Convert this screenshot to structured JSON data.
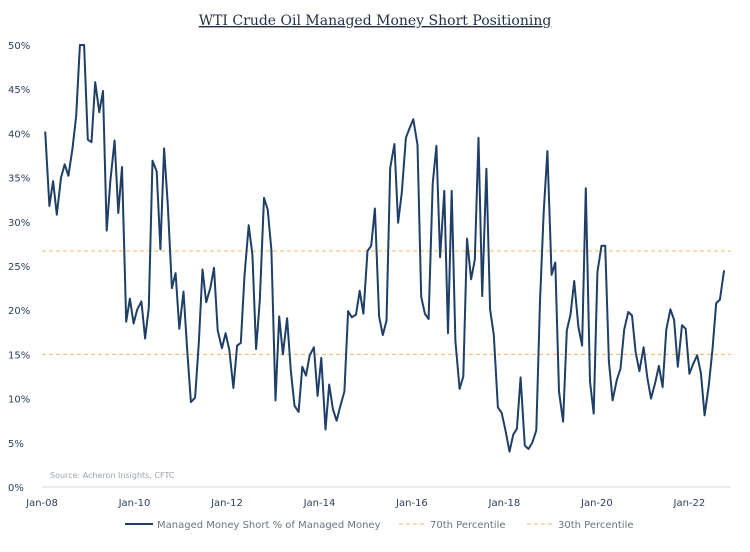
{
  "chart_data": {
    "type": "line",
    "title": "WTI Crude Oil Managed Money Short Positioning",
    "source": "Source: Acheron Insights, CFTC",
    "y_ticks": [
      "0%",
      "5%",
      "10%",
      "15%",
      "20%",
      "25%",
      "30%",
      "35%",
      "40%",
      "45%",
      "50%"
    ],
    "x_ticks": [
      {
        "label": "Jan-08",
        "x": 2008.0
      },
      {
        "label": "Jan-10",
        "x": 2010.0
      },
      {
        "label": "Jan-12",
        "x": 2012.0
      },
      {
        "label": "Jan-14",
        "x": 2014.0
      },
      {
        "label": "Jan-16",
        "x": 2016.0
      },
      {
        "label": "Jan-18",
        "x": 2018.0
      },
      {
        "label": "Jan-20",
        "x": 2020.0
      },
      {
        "label": "Jan-22",
        "x": 2022.0
      }
    ],
    "xlim": [
      2008.0,
      2022.9
    ],
    "ylim": [
      0,
      50
    ],
    "series": [
      {
        "name": "Managed Money Short % of Managed Money",
        "color": "#1f3f66",
        "style": "solid",
        "points": [
          [
            2008.07,
            40.2
          ],
          [
            2008.16,
            31.8
          ],
          [
            2008.24,
            34.6
          ],
          [
            2008.32,
            30.8
          ],
          [
            2008.41,
            35.0
          ],
          [
            2008.49,
            36.5
          ],
          [
            2008.57,
            35.2
          ],
          [
            2008.66,
            38.3
          ],
          [
            2008.74,
            42.0
          ],
          [
            2008.82,
            50.0
          ],
          [
            2008.91,
            50.0
          ],
          [
            2008.99,
            39.3
          ],
          [
            2009.07,
            39.0
          ],
          [
            2009.15,
            45.8
          ],
          [
            2009.24,
            42.4
          ],
          [
            2009.32,
            44.8
          ],
          [
            2009.4,
            29.0
          ],
          [
            2009.48,
            34.7
          ],
          [
            2009.57,
            39.2
          ],
          [
            2009.65,
            31.0
          ],
          [
            2009.73,
            36.2
          ],
          [
            2009.82,
            18.7
          ],
          [
            2009.9,
            21.3
          ],
          [
            2009.98,
            18.5
          ],
          [
            2010.06,
            20.1
          ],
          [
            2010.15,
            21.0
          ],
          [
            2010.23,
            16.8
          ],
          [
            2010.31,
            20.3
          ],
          [
            2010.39,
            36.9
          ],
          [
            2010.48,
            35.7
          ],
          [
            2010.56,
            26.9
          ],
          [
            2010.64,
            38.3
          ],
          [
            2010.72,
            31.9
          ],
          [
            2010.81,
            22.5
          ],
          [
            2010.89,
            24.2
          ],
          [
            2010.97,
            17.9
          ],
          [
            2011.06,
            22.1
          ],
          [
            2011.14,
            15.5
          ],
          [
            2011.22,
            9.6
          ],
          [
            2011.31,
            10.1
          ],
          [
            2011.39,
            16.3
          ],
          [
            2011.47,
            24.6
          ],
          [
            2011.55,
            20.9
          ],
          [
            2011.64,
            22.5
          ],
          [
            2011.72,
            24.8
          ],
          [
            2011.8,
            17.7
          ],
          [
            2011.89,
            15.7
          ],
          [
            2011.97,
            17.4
          ],
          [
            2012.05,
            15.5
          ],
          [
            2012.14,
            11.2
          ],
          [
            2012.22,
            16.0
          ],
          [
            2012.3,
            16.3
          ],
          [
            2012.38,
            23.9
          ],
          [
            2012.47,
            29.6
          ],
          [
            2012.55,
            26.3
          ],
          [
            2012.63,
            15.6
          ],
          [
            2012.71,
            21.1
          ],
          [
            2012.8,
            32.7
          ],
          [
            2012.88,
            31.4
          ],
          [
            2012.96,
            26.8
          ],
          [
            2013.05,
            9.8
          ],
          [
            2013.13,
            19.3
          ],
          [
            2013.21,
            15.0
          ],
          [
            2013.3,
            19.1
          ],
          [
            2013.38,
            13.2
          ],
          [
            2013.46,
            9.2
          ],
          [
            2013.55,
            8.5
          ],
          [
            2013.63,
            13.6
          ],
          [
            2013.71,
            12.6
          ],
          [
            2013.79,
            14.9
          ],
          [
            2013.88,
            15.8
          ],
          [
            2013.96,
            10.3
          ],
          [
            2014.04,
            14.6
          ],
          [
            2014.13,
            6.5
          ],
          [
            2014.21,
            11.6
          ],
          [
            2014.29,
            8.8
          ],
          [
            2014.37,
            7.5
          ],
          [
            2014.46,
            9.3
          ],
          [
            2014.54,
            10.8
          ],
          [
            2014.62,
            19.9
          ],
          [
            2014.7,
            19.2
          ],
          [
            2014.79,
            19.5
          ],
          [
            2014.87,
            22.2
          ],
          [
            2014.95,
            19.6
          ],
          [
            2015.04,
            26.7
          ],
          [
            2015.12,
            27.3
          ],
          [
            2015.2,
            31.5
          ],
          [
            2015.29,
            19.3
          ],
          [
            2015.37,
            17.2
          ],
          [
            2015.45,
            18.8
          ],
          [
            2015.53,
            36.1
          ],
          [
            2015.62,
            38.8
          ],
          [
            2015.7,
            29.9
          ],
          [
            2015.78,
            33.3
          ],
          [
            2015.87,
            39.5
          ],
          [
            2015.95,
            40.6
          ],
          [
            2016.03,
            41.6
          ],
          [
            2016.12,
            38.7
          ],
          [
            2016.2,
            21.5
          ],
          [
            2016.28,
            19.6
          ],
          [
            2016.36,
            19.0
          ],
          [
            2016.45,
            34.3
          ],
          [
            2016.53,
            38.6
          ],
          [
            2016.61,
            26.0
          ],
          [
            2016.7,
            33.5
          ],
          [
            2016.78,
            17.4
          ],
          [
            2016.86,
            33.5
          ],
          [
            2016.94,
            16.5
          ],
          [
            2017.03,
            11.1
          ],
          [
            2017.11,
            12.5
          ],
          [
            2017.19,
            28.1
          ],
          [
            2017.28,
            23.5
          ],
          [
            2017.36,
            25.7
          ],
          [
            2017.44,
            39.5
          ],
          [
            2017.52,
            21.6
          ],
          [
            2017.61,
            36.0
          ],
          [
            2017.69,
            20.1
          ],
          [
            2017.77,
            17.2
          ],
          [
            2017.86,
            9.0
          ],
          [
            2017.94,
            8.4
          ],
          [
            2018.02,
            6.5
          ],
          [
            2018.11,
            4.0
          ],
          [
            2018.19,
            5.9
          ],
          [
            2018.27,
            6.6
          ],
          [
            2018.35,
            12.4
          ],
          [
            2018.44,
            4.7
          ],
          [
            2018.52,
            4.3
          ],
          [
            2018.6,
            5.0
          ],
          [
            2018.69,
            6.4
          ],
          [
            2018.77,
            21.0
          ],
          [
            2018.85,
            31.1
          ],
          [
            2018.93,
            38.0
          ],
          [
            2019.02,
            24.0
          ],
          [
            2019.1,
            25.4
          ],
          [
            2019.18,
            10.8
          ],
          [
            2019.27,
            7.4
          ],
          [
            2019.35,
            17.7
          ],
          [
            2019.43,
            19.5
          ],
          [
            2019.51,
            23.3
          ],
          [
            2019.6,
            18.1
          ],
          [
            2019.68,
            16.0
          ],
          [
            2019.76,
            33.8
          ],
          [
            2019.85,
            11.9
          ],
          [
            2019.93,
            8.3
          ],
          [
            2020.01,
            24.3
          ],
          [
            2020.1,
            27.3
          ],
          [
            2020.18,
            27.3
          ],
          [
            2020.26,
            14.2
          ],
          [
            2020.34,
            9.8
          ],
          [
            2020.43,
            12.1
          ],
          [
            2020.51,
            13.4
          ],
          [
            2020.59,
            17.8
          ],
          [
            2020.68,
            19.8
          ],
          [
            2020.76,
            19.4
          ],
          [
            2020.84,
            15.2
          ],
          [
            2020.92,
            13.1
          ],
          [
            2021.01,
            15.8
          ],
          [
            2021.09,
            12.4
          ],
          [
            2021.17,
            10.0
          ],
          [
            2021.26,
            11.8
          ],
          [
            2021.34,
            13.7
          ],
          [
            2021.42,
            11.3
          ],
          [
            2021.5,
            17.8
          ],
          [
            2021.59,
            20.1
          ],
          [
            2021.67,
            18.9
          ],
          [
            2021.75,
            13.6
          ],
          [
            2021.84,
            18.3
          ],
          [
            2021.92,
            17.9
          ],
          [
            2022.0,
            12.8
          ],
          [
            2022.08,
            13.9
          ],
          [
            2022.17,
            14.9
          ],
          [
            2022.25,
            12.9
          ],
          [
            2022.33,
            8.1
          ],
          [
            2022.42,
            11.5
          ],
          [
            2022.5,
            15.6
          ],
          [
            2022.58,
            20.8
          ],
          [
            2022.66,
            21.2
          ],
          [
            2022.75,
            24.5
          ]
        ]
      },
      {
        "name": "70th Percentile",
        "color": "#f3b85a",
        "style": "dashed",
        "level": 26.7
      },
      {
        "name": "30th Percentile",
        "color": "#f3b85a",
        "style": "dashed",
        "level": 15.0
      }
    ]
  }
}
